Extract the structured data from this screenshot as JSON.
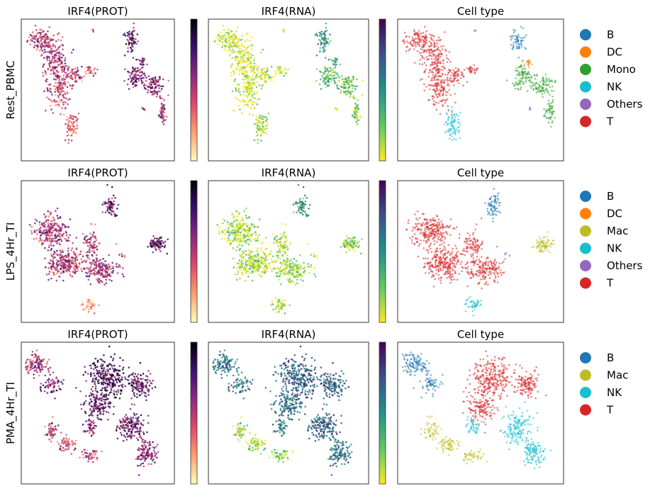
{
  "chart_data": {
    "type": "scatter",
    "panel_titles": [
      "IRF4(PROT)",
      "IRF4(RNA)",
      "Cell type"
    ],
    "colormaps": {
      "prot": "magma",
      "rna": "viridis"
    },
    "rows": [
      {
        "name": "Rest_PBMC",
        "legend": [
          {
            "label": "B",
            "color": "#1f77b4"
          },
          {
            "label": "DC",
            "color": "#ff7f0e"
          },
          {
            "label": "Mono",
            "color": "#2ca02c"
          },
          {
            "label": "NK",
            "color": "#17becf"
          },
          {
            "label": "Others",
            "color": "#9467bd"
          },
          {
            "label": "T",
            "color": "#d62728"
          }
        ]
      },
      {
        "name": "LPS_4Hr_TI",
        "legend": [
          {
            "label": "B",
            "color": "#1f77b4"
          },
          {
            "label": "DC",
            "color": "#ff7f0e"
          },
          {
            "label": "Mac",
            "color": "#bcbd22"
          },
          {
            "label": "NK",
            "color": "#17becf"
          },
          {
            "label": "Others",
            "color": "#9467bd"
          },
          {
            "label": "T",
            "color": "#d62728"
          }
        ]
      },
      {
        "name": "PMA_4Hr_TI",
        "legend": [
          {
            "label": "B",
            "color": "#1f77b4"
          },
          {
            "label": "Mac",
            "color": "#bcbd22"
          },
          {
            "label": "NK",
            "color": "#17becf"
          },
          {
            "label": "T",
            "color": "#d62728"
          }
        ]
      }
    ]
  }
}
